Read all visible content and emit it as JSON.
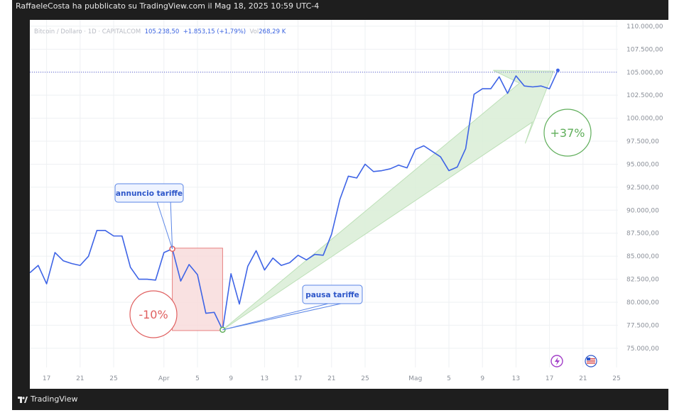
{
  "header": {
    "publisher_line": "RaffaeleCosta ha pubblicato su TradingView.com il Mag 18, 2025 10:59 UTC-4"
  },
  "legend": {
    "symbol": "Bitcoin / Dollaro · 1D · CAPITALCOM",
    "price": "105.238,50",
    "change": "+1.853,15 (+1,79%)",
    "vol_label": "Vol",
    "vol": "268,29 K"
  },
  "footer": {
    "brand": "TradingView"
  },
  "colors": {
    "line": "#3e64e6",
    "grid": "#eef0f3",
    "down_box_fill": "#f9dcdc",
    "down_box_stroke": "#e36b6b",
    "up_arrow_fill": "#dcefd9",
    "up_arrow_stroke": "#b6ddb0",
    "badge_down": "#e06060",
    "badge_up": "#5fae5a",
    "callout_border": "#5b86e6",
    "callout_bg": "#eef3ff"
  },
  "chart_data": {
    "type": "line",
    "title": "Bitcoin / Dollaro · 1D · CAPITALCOM",
    "ylim": [
      73000,
      110000
    ],
    "y_ticks": [
      "75.000,00",
      "77.500,00",
      "80.000,00",
      "82.500,00",
      "85.000,00",
      "87.500,00",
      "90.000,00",
      "92.500,00",
      "95.000,00",
      "97.500,00",
      "100.000,00",
      "102.500,00",
      "105.000,00",
      "107.500,00",
      "110.000,00"
    ],
    "y_tick_values": [
      75000,
      77500,
      80000,
      82500,
      85000,
      87500,
      90000,
      92500,
      95000,
      97500,
      100000,
      102500,
      105000,
      107500,
      110000
    ],
    "x_range": [
      0,
      71
    ],
    "x_ticks": [
      {
        "x": 2,
        "label": "17"
      },
      {
        "x": 6,
        "label": "21"
      },
      {
        "x": 10,
        "label": "25"
      },
      {
        "x": 16,
        "label": "Apr"
      },
      {
        "x": 20,
        "label": "5"
      },
      {
        "x": 24,
        "label": "9"
      },
      {
        "x": 28,
        "label": "13"
      },
      {
        "x": 32,
        "label": "17"
      },
      {
        "x": 36,
        "label": "21"
      },
      {
        "x": 40,
        "label": "25"
      },
      {
        "x": 46,
        "label": "Mag"
      },
      {
        "x": 50,
        "label": "5"
      },
      {
        "x": 54,
        "label": "9"
      },
      {
        "x": 58,
        "label": "13"
      },
      {
        "x": 62,
        "label": "17"
      },
      {
        "x": 66,
        "label": "21"
      },
      {
        "x": 70,
        "label": "25"
      }
    ],
    "series": [
      {
        "values": [
          [
            0,
            83200
          ],
          [
            1,
            84000
          ],
          [
            2,
            82000
          ],
          [
            3,
            85400
          ],
          [
            4,
            84500
          ],
          [
            5,
            84200
          ],
          [
            6,
            84000
          ],
          [
            7,
            85000
          ],
          [
            8,
            87800
          ],
          [
            9,
            87800
          ],
          [
            10,
            87200
          ],
          [
            11,
            87200
          ],
          [
            12,
            83800
          ],
          [
            13,
            82500
          ],
          [
            14,
            82500
          ],
          [
            15,
            82400
          ],
          [
            16,
            85400
          ],
          [
            17,
            85800
          ],
          [
            18,
            82300
          ],
          [
            19,
            84100
          ],
          [
            20,
            83000
          ],
          [
            21,
            78800
          ],
          [
            22,
            78900
          ],
          [
            23,
            77000
          ],
          [
            24,
            83100
          ],
          [
            25,
            79800
          ],
          [
            26,
            83900
          ],
          [
            27,
            85600
          ],
          [
            28,
            83500
          ],
          [
            29,
            84800
          ],
          [
            30,
            84000
          ],
          [
            31,
            84300
          ],
          [
            32,
            85100
          ],
          [
            33,
            84600
          ],
          [
            34,
            85200
          ],
          [
            35,
            85100
          ],
          [
            36,
            87400
          ],
          [
            37,
            91200
          ],
          [
            38,
            93700
          ],
          [
            39,
            93500
          ],
          [
            40,
            95000
          ],
          [
            41,
            94200
          ],
          [
            42,
            94300
          ],
          [
            43,
            94500
          ],
          [
            44,
            94900
          ],
          [
            45,
            94600
          ],
          [
            46,
            96600
          ],
          [
            47,
            97000
          ],
          [
            48,
            96400
          ],
          [
            49,
            95800
          ],
          [
            50,
            94300
          ],
          [
            51,
            94700
          ],
          [
            52,
            96700
          ],
          [
            53,
            102600
          ],
          [
            54,
            103200
          ],
          [
            55,
            103200
          ],
          [
            56,
            104500
          ],
          [
            57,
            102700
          ],
          [
            58,
            104600
          ],
          [
            59,
            103500
          ],
          [
            60,
            103400
          ],
          [
            61,
            103500
          ],
          [
            62,
            103200
          ],
          [
            63,
            105200
          ]
        ]
      }
    ],
    "current_price_line": 105000,
    "annotations": [
      {
        "type": "callout",
        "text": "annuncio tariffe",
        "x": 17,
        "y": 85800
      },
      {
        "type": "callout",
        "text": "pausa tariffe",
        "x": 23,
        "y": 77000
      },
      {
        "type": "badge",
        "text": "-10%"
      },
      {
        "type": "badge",
        "text": "+37%"
      }
    ]
  }
}
